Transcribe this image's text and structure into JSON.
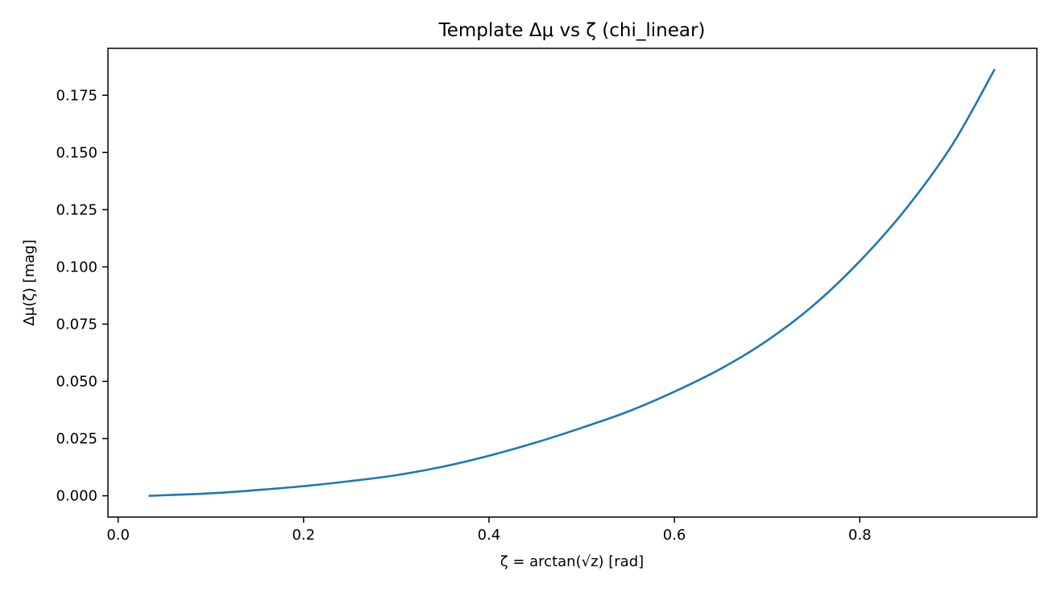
{
  "chart_data": {
    "type": "line",
    "title": "Template Δμ vs ζ  (chi_linear)",
    "xlabel": "ζ = arctan(√z)  [rad]",
    "ylabel": "Δμ(ζ) [mag]",
    "xlim": [
      -0.011,
      0.991
    ],
    "ylim": [
      -0.0093,
      0.1955
    ],
    "xticks": [
      0.0,
      0.2,
      0.4,
      0.6,
      0.8
    ],
    "xtick_labels": [
      "0.0",
      "0.2",
      "0.4",
      "0.6",
      "0.8"
    ],
    "yticks": [
      0.0,
      0.025,
      0.05,
      0.075,
      0.1,
      0.125,
      0.15,
      0.175
    ],
    "ytick_labels": [
      "0.000",
      "0.025",
      "0.050",
      "0.075",
      "0.100",
      "0.125",
      "0.150",
      "0.175"
    ],
    "grid": false,
    "series": [
      {
        "color": "#1f77b4",
        "x": [
          0.034,
          0.1,
          0.15,
          0.2,
          0.25,
          0.3,
          0.35,
          0.4,
          0.45,
          0.5,
          0.55,
          0.6,
          0.65,
          0.7,
          0.75,
          0.8,
          0.85,
          0.9,
          0.945
        ],
        "y": [
          0.0,
          0.0011,
          0.0025,
          0.0042,
          0.0064,
          0.009,
          0.0127,
          0.0175,
          0.0232,
          0.0297,
          0.0368,
          0.0455,
          0.0555,
          0.0678,
          0.0832,
          0.1025,
          0.1255,
          0.1535,
          0.186
        ]
      }
    ]
  }
}
